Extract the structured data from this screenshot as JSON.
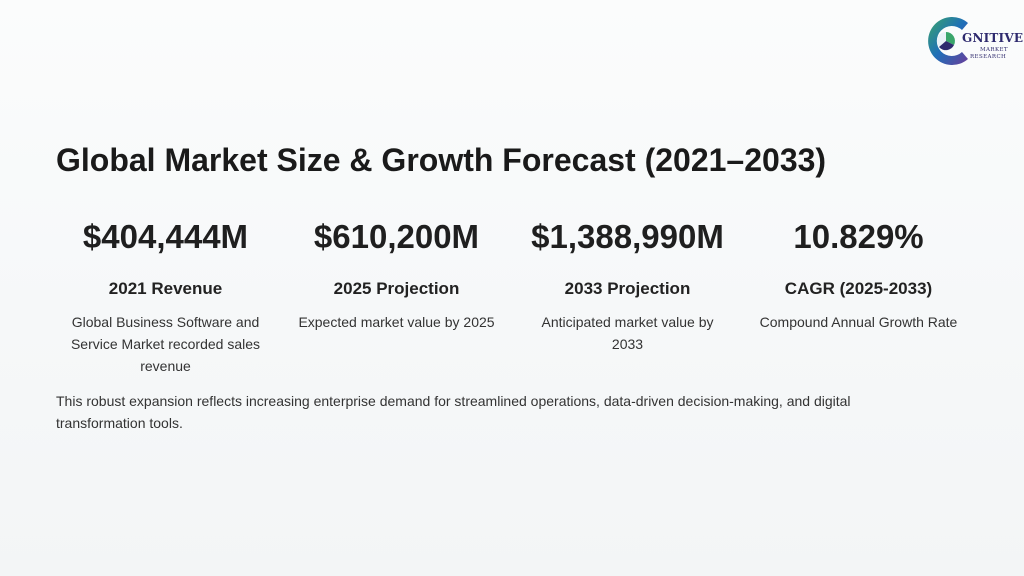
{
  "logo": {
    "word": "GNITIVE",
    "line1": "MARKET",
    "line2": "RESEARCH"
  },
  "title": "Global Market Size & Growth Forecast (2021–2033)",
  "stats": [
    {
      "value": "$404,444M",
      "label": "2021 Revenue",
      "description": "Global Business Software and Service Market recorded sales revenue"
    },
    {
      "value": "$610,200M",
      "label": "2025 Projection",
      "description": "Expected market value by 2025"
    },
    {
      "value": "$1,388,990M",
      "label": "2033 Projection",
      "description": "Anticipated market value by 2033"
    },
    {
      "value": "10.829%",
      "label": "CAGR (2025-2033)",
      "description": "Compound Annual Growth Rate"
    }
  ],
  "summary": "This robust expansion reflects increasing enterprise demand for streamlined operations, data-driven decision-making, and digital transformation tools.",
  "colors": {
    "logo_blue": "#1f6fb8",
    "logo_green": "#3aa66b",
    "logo_navy": "#2e2a6e",
    "logo_purple": "#6a3d9a"
  }
}
